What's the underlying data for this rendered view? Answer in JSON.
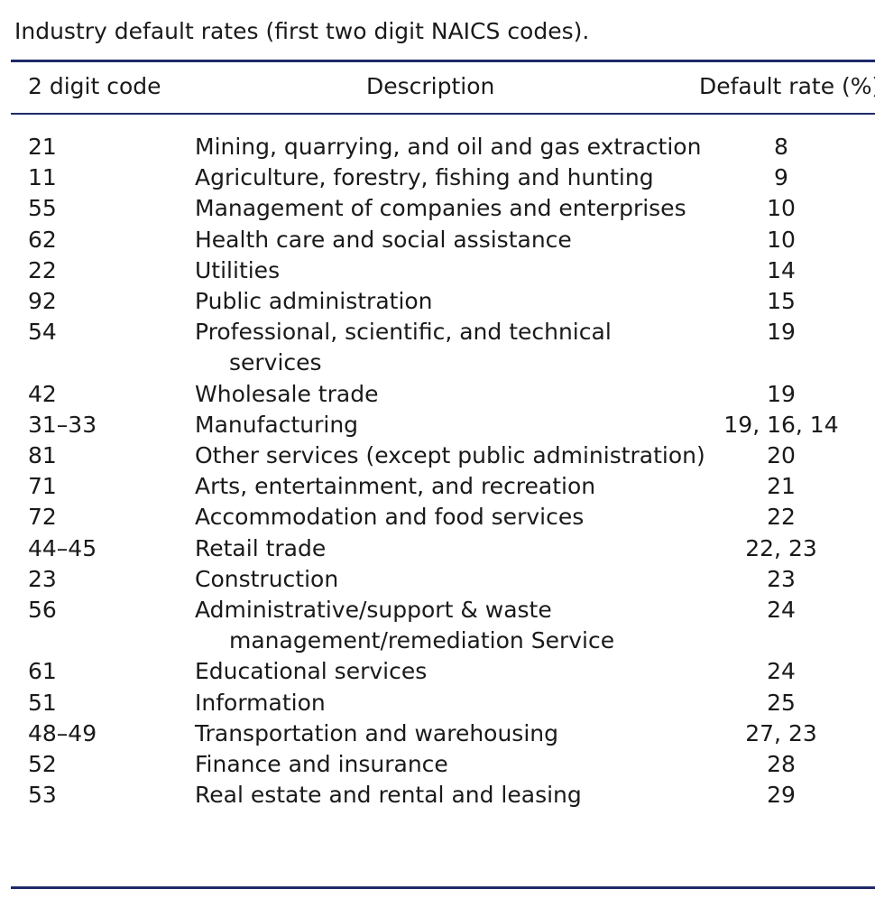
{
  "caption": "Industry default rates (first two digit NAICS codes).",
  "columns": {
    "code": "2 digit code",
    "description": "Description",
    "rate": "Default rate (%)"
  },
  "rows": [
    {
      "code": "21",
      "description": "Mining, quarrying, and oil and gas extraction",
      "rate": "8"
    },
    {
      "code": "11",
      "description": "Agriculture, forestry, fishing and hunting",
      "rate": "9"
    },
    {
      "code": "55",
      "description": "Management of companies and enterprises",
      "rate": "10"
    },
    {
      "code": "62",
      "description": "Health care and social assistance",
      "rate": "10"
    },
    {
      "code": "22",
      "description": "Utilities",
      "rate": "14"
    },
    {
      "code": "92",
      "description": "Public administration",
      "rate": "15"
    },
    {
      "code": "54",
      "description": "Professional, scientific, and technical services",
      "rate": "19"
    },
    {
      "code": "42",
      "description": "Wholesale trade",
      "rate": "19"
    },
    {
      "code": "31–33",
      "description": "Manufacturing",
      "rate": "19, 16, 14"
    },
    {
      "code": "81",
      "description": "Other services (except public administration)",
      "rate": "20"
    },
    {
      "code": "71",
      "description": "Arts, entertainment, and recreation",
      "rate": "21"
    },
    {
      "code": "72",
      "description": "Accommodation and food services",
      "rate": "22"
    },
    {
      "code": "44–45",
      "description": "Retail trade",
      "rate": "22, 23"
    },
    {
      "code": "23",
      "description": "Construction",
      "rate": "23"
    },
    {
      "code": "56",
      "description": "Administrative/support & waste management/remediation Service",
      "rate": "24"
    },
    {
      "code": "61",
      "description": "Educational services",
      "rate": "24"
    },
    {
      "code": "51",
      "description": "Information",
      "rate": "25"
    },
    {
      "code": "48–49",
      "description": "Transportation and warehousing",
      "rate": "27, 23"
    },
    {
      "code": "52",
      "description": "Finance and insurance",
      "rate": "28"
    },
    {
      "code": "53",
      "description": "Real estate and rental and leasing",
      "rate": "29"
    }
  ]
}
